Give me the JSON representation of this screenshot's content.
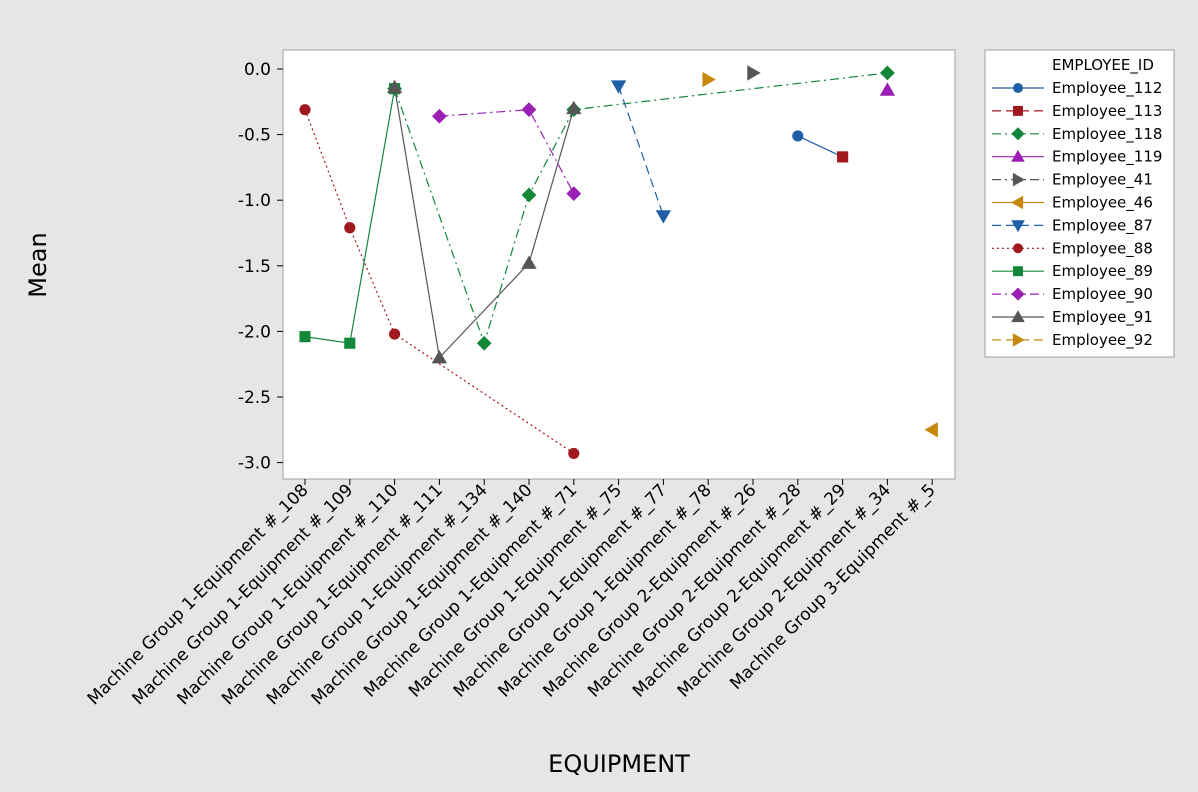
{
  "chart_data": {
    "type": "line",
    "xlabel": "EQUIPMENT",
    "ylabel": "Mean",
    "ylim": [
      -3.1,
      0.15
    ],
    "yticks": [
      0.0,
      -0.5,
      -1.0,
      -1.5,
      -2.0,
      -2.5,
      -3.0
    ],
    "ytick_labels": [
      "0.0",
      "-0.5",
      "-1.0",
      "-1.5",
      "-2.0",
      "-2.5",
      "-3.0"
    ],
    "grid": false,
    "legend_position": "right",
    "legend_title": "EMPLOYEE_ID",
    "categories": [
      "Machine Group 1-Equipment #_108",
      "Machine Group 1-Equipment #_109",
      "Machine Group 1-Equipment #_110",
      "Machine Group 1-Equipment #_111",
      "Machine Group 1-Equipment #_134",
      "Machine Group 1-Equipment #_140",
      "Machine Group 1-Equipment #_71",
      "Machine Group 1-Equipment #_75",
      "Machine Group 1-Equipment #_77",
      "Machine Group 1-Equipment #_78",
      "Machine Group 2-Equipment #_26",
      "Machine Group 2-Equipment #_28",
      "Machine Group 2-Equipment #_29",
      "Machine Group 2-Equipment #_34",
      "Machine Group 3-Equipment #_5"
    ],
    "series": [
      {
        "name": "Employee_112",
        "color": "#1f5fa8",
        "marker": "circle",
        "dash": "solid",
        "values": [
          null,
          null,
          null,
          null,
          null,
          null,
          null,
          null,
          null,
          null,
          null,
          -0.51,
          -0.67,
          null,
          null
        ]
      },
      {
        "name": "Employee_113",
        "color": "#a0191e",
        "marker": "square",
        "dash": "dashed",
        "values": [
          null,
          null,
          null,
          null,
          null,
          null,
          null,
          null,
          null,
          null,
          null,
          null,
          -0.67,
          null,
          null
        ]
      },
      {
        "name": "Employee_118",
        "color": "#12873a",
        "marker": "diamond",
        "dash": "dashdot",
        "values": [
          null,
          null,
          -0.15,
          null,
          -2.09,
          -0.96,
          -0.31,
          null,
          null,
          null,
          null,
          null,
          null,
          -0.03,
          null
        ]
      },
      {
        "name": "Employee_119",
        "color": "#9b1fb5",
        "marker": "triangle-up",
        "dash": "solid",
        "values": [
          null,
          null,
          null,
          null,
          null,
          null,
          null,
          null,
          null,
          null,
          null,
          null,
          null,
          -0.16,
          null
        ]
      },
      {
        "name": "Employee_41",
        "color": "#555555",
        "marker": "triangle-right",
        "dash": "dashdot",
        "values": [
          null,
          null,
          null,
          null,
          null,
          null,
          null,
          null,
          null,
          null,
          -0.03,
          null,
          null,
          null,
          null
        ]
      },
      {
        "name": "Employee_46",
        "color": "#c7880e",
        "marker": "triangle-left",
        "dash": "solid",
        "values": [
          null,
          null,
          null,
          null,
          null,
          null,
          null,
          null,
          null,
          null,
          null,
          null,
          null,
          null,
          -2.75
        ]
      },
      {
        "name": "Employee_87",
        "color": "#1f5fa8",
        "marker": "triangle-down",
        "dash": "dashed",
        "values": [
          null,
          null,
          null,
          null,
          null,
          null,
          null,
          -0.13,
          -1.12,
          null,
          null,
          null,
          null,
          null,
          null
        ]
      },
      {
        "name": "Employee_88",
        "color": "#a0191e",
        "marker": "circle",
        "dash": "dotted",
        "values": [
          -0.31,
          -1.21,
          -2.02,
          null,
          null,
          null,
          -2.93,
          null,
          null,
          null,
          null,
          null,
          null,
          null,
          null
        ]
      },
      {
        "name": "Employee_89",
        "color": "#12873a",
        "marker": "square",
        "dash": "solid",
        "values": [
          -2.04,
          -2.09,
          -0.15,
          null,
          null,
          null,
          null,
          null,
          null,
          null,
          null,
          null,
          null,
          null,
          null
        ]
      },
      {
        "name": "Employee_90",
        "color": "#9b1fb5",
        "marker": "diamond",
        "dash": "dashdot",
        "values": [
          null,
          null,
          null,
          -0.36,
          null,
          -0.31,
          -0.95,
          null,
          null,
          null,
          null,
          null,
          null,
          null,
          null
        ]
      },
      {
        "name": "Employee_91",
        "color": "#555555",
        "marker": "triangle-up",
        "dash": "solid",
        "values": [
          null,
          null,
          -0.14,
          -2.2,
          null,
          -1.48,
          -0.3,
          null,
          null,
          null,
          null,
          null,
          null,
          null,
          null
        ]
      },
      {
        "name": "Employee_92",
        "color": "#c7880e",
        "marker": "triangle-right",
        "dash": "dashed",
        "values": [
          null,
          null,
          null,
          null,
          null,
          null,
          null,
          null,
          null,
          -0.08,
          null,
          null,
          null,
          null,
          null
        ]
      }
    ]
  }
}
